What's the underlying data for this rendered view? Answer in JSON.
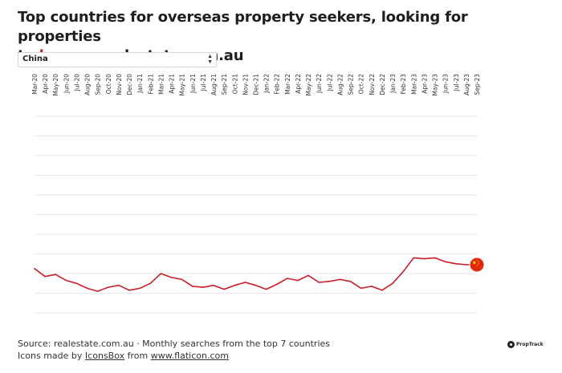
{
  "title": {
    "line1": "Top countries for overseas property seekers, looking for properties",
    "line2_prefix": "to ",
    "line2_accent": "buy",
    "line2_suffix": " on realestate.com.au"
  },
  "selector": {
    "selected": "China"
  },
  "chart_data": {
    "type": "line",
    "title": "Top countries for overseas property seekers, looking for properties to buy on realestate.com.au",
    "xlabel": "",
    "ylabel": "",
    "grid": true,
    "legend": "none",
    "ylim": [
      0,
      100
    ],
    "categories": [
      "Mar-20",
      "Apr-20",
      "May-20",
      "Jun-20",
      "Jul-20",
      "Aug-20",
      "Sep-20",
      "Oct-20",
      "Nov-20",
      "Dec-20",
      "Jan-21",
      "Feb-21",
      "Mar-21",
      "Apr-21",
      "May-21",
      "Jun-21",
      "Jul-21",
      "Aug-21",
      "Sep-21",
      "Oct-21",
      "Nov-21",
      "Dec-21",
      "Jan-22",
      "Feb-22",
      "Mar-22",
      "Apr-22",
      "May-22",
      "Jun-22",
      "Jul-22",
      "Aug-22",
      "Sep-22",
      "Oct-22",
      "Nov-22",
      "Dec-22",
      "Jan-23",
      "Feb-23",
      "Mar-23",
      "Apr-23",
      "May-23",
      "Jun-23",
      "Jul-23",
      "Aug-23",
      "Sep-23"
    ],
    "series": [
      {
        "color": "#c81e28",
        "end_marker": "china-flag-icon",
        "values": [
          22.5,
          18.5,
          19.5,
          16.5,
          15,
          12.5,
          11,
          13,
          14,
          11.5,
          12.5,
          15,
          20,
          18,
          17,
          13.5,
          13,
          14,
          12,
          14,
          15.5,
          14,
          12,
          14.5,
          17.5,
          16.5,
          19,
          15.5,
          16,
          17,
          16,
          12.5,
          13.5,
          11.5,
          15,
          21,
          28,
          27.5,
          28,
          26,
          25,
          24.5,
          24.5
        ]
      }
    ]
  },
  "footer": {
    "source": "Source: realestate.com.au · Monthly searches from the top 7 countries",
    "icons_prefix": "Icons made by ",
    "icons_author": "IconsBox",
    "icons_middle": " from ",
    "icons_site": "www.flaticon.com"
  },
  "brand": {
    "name": "PropTrack"
  },
  "colors": {
    "accent": "#c81e28",
    "line": "#c81e28",
    "grid": "#e6e6e6"
  }
}
